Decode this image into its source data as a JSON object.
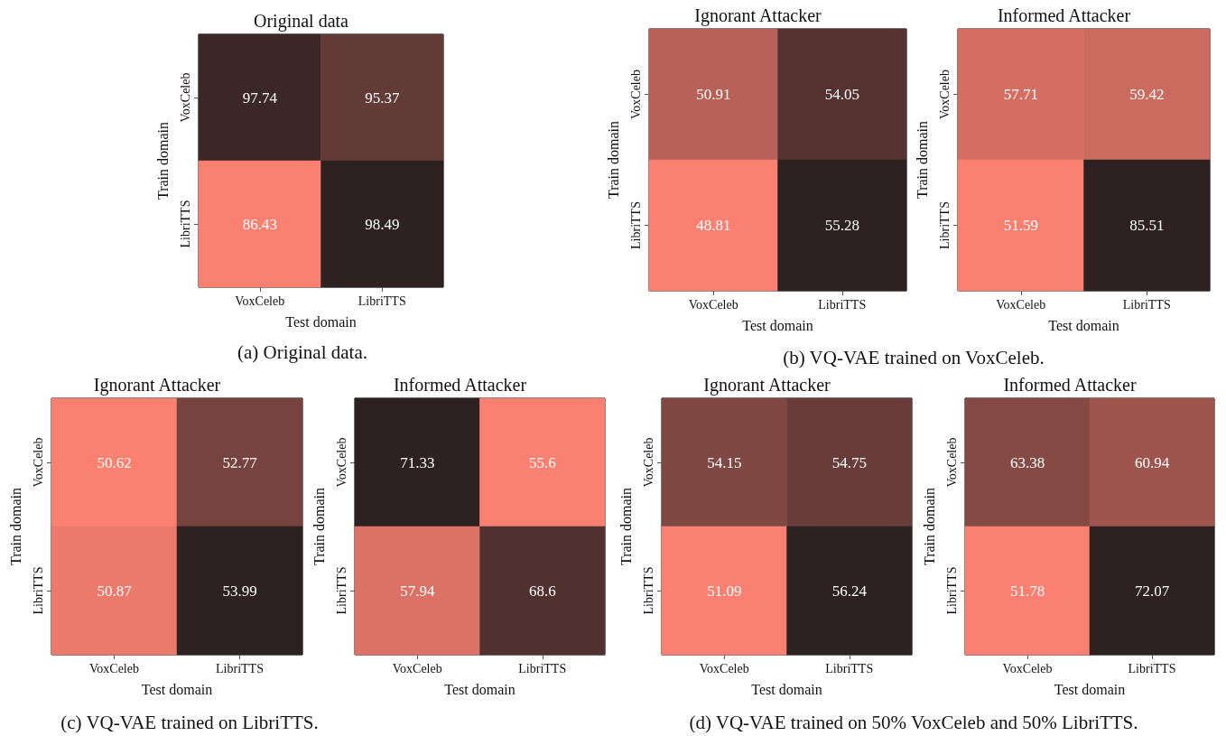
{
  "chart_data": [
    {
      "type": "heatmap",
      "title": "Original data",
      "xlabel": "Test domain",
      "ylabel": "Train domain",
      "categories": [
        "VoxCeleb",
        "LibriTTS"
      ],
      "y_categories": [
        "VoxCeleb",
        "LibriTTS"
      ],
      "cells": [
        [
          97.74,
          95.37
        ],
        [
          86.43,
          98.49
        ]
      ],
      "data_labels": true,
      "annotations": [
        "(a) Original data."
      ]
    },
    {
      "type": "heatmap",
      "title": "Ignorant Attacker",
      "xlabel": "Test domain",
      "ylabel": "Train domain",
      "categories": [
        "VoxCeleb",
        "LibriTTS"
      ],
      "y_categories": [
        "VoxCeleb",
        "LibriTTS"
      ],
      "cells": [
        [
          50.91,
          54.05
        ],
        [
          48.81,
          55.28
        ]
      ],
      "data_labels": true,
      "annotations": [
        "(b) VQ-VAE trained on VoxCeleb."
      ]
    },
    {
      "type": "heatmap",
      "title": "Informed Attacker",
      "xlabel": "Test domain",
      "ylabel": "Train domain",
      "categories": [
        "VoxCeleb",
        "LibriTTS"
      ],
      "y_categories": [
        "VoxCeleb",
        "LibriTTS"
      ],
      "cells": [
        [
          57.71,
          59.42
        ],
        [
          51.59,
          85.51
        ]
      ],
      "data_labels": true
    },
    {
      "type": "heatmap",
      "title": "Ignorant Attacker",
      "xlabel": "Test domain",
      "ylabel": "Train domain",
      "categories": [
        "VoxCeleb",
        "LibriTTS"
      ],
      "y_categories": [
        "VoxCeleb",
        "LibriTTS"
      ],
      "cells": [
        [
          50.62,
          52.77
        ],
        [
          50.87,
          53.99
        ]
      ],
      "data_labels": true,
      "annotations": [
        "(c) VQ-VAE trained on LibriTTS."
      ]
    },
    {
      "type": "heatmap",
      "title": "Informed Attacker",
      "xlabel": "Test domain",
      "ylabel": "Train domain",
      "categories": [
        "VoxCeleb",
        "LibriTTS"
      ],
      "y_categories": [
        "VoxCeleb",
        "LibriTTS"
      ],
      "cells": [
        [
          71.33,
          55.6
        ],
        [
          57.94,
          68.6
        ]
      ],
      "data_labels": true
    },
    {
      "type": "heatmap",
      "title": "Ignorant Attacker",
      "xlabel": "Test domain",
      "ylabel": "Train domain",
      "categories": [
        "VoxCeleb",
        "LibriTTS"
      ],
      "y_categories": [
        "VoxCeleb",
        "LibriTTS"
      ],
      "cells": [
        [
          54.15,
          54.75
        ],
        [
          51.09,
          56.24
        ]
      ],
      "data_labels": true,
      "annotations": [
        "(d) VQ-VAE trained on 50% VoxCeleb and 50% LibriTTS."
      ]
    },
    {
      "type": "heatmap",
      "title": "Informed Attacker",
      "xlabel": "Test domain",
      "ylabel": "Train domain",
      "categories": [
        "VoxCeleb",
        "LibriTTS"
      ],
      "y_categories": [
        "VoxCeleb",
        "LibriTTS"
      ],
      "cells": [
        [
          63.38,
          60.94
        ],
        [
          51.78,
          72.07
        ]
      ],
      "data_labels": true
    }
  ]
}
